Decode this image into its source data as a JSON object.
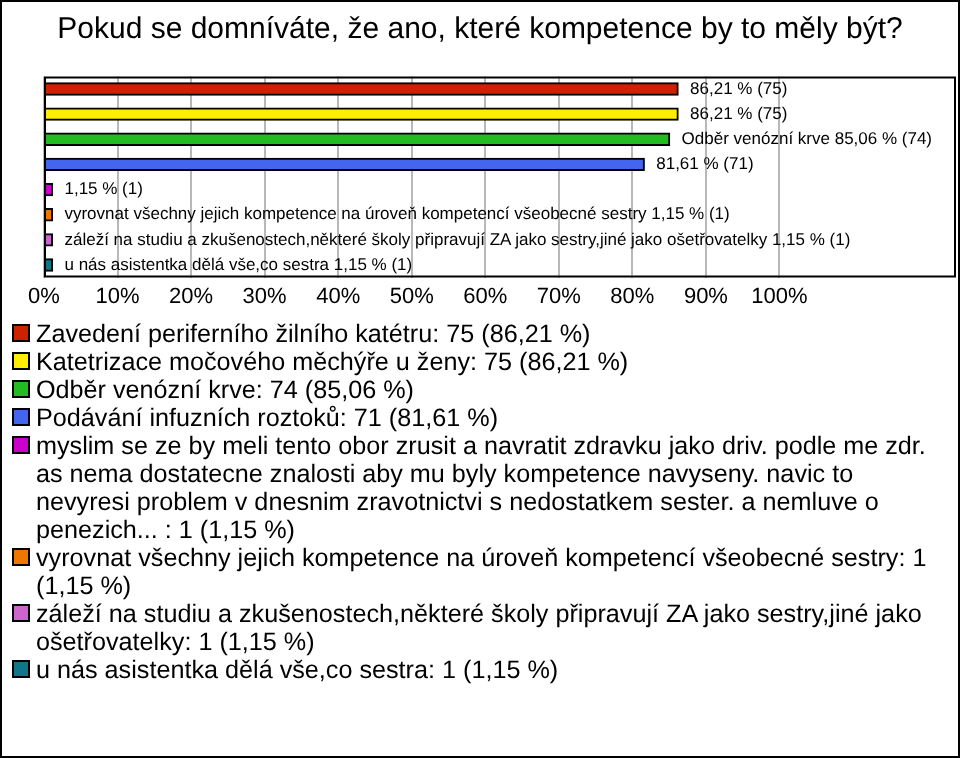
{
  "chart_data": {
    "type": "bar",
    "orientation": "horizontal",
    "title": "Pokud se domníváte, že ano, které kompetence by to měly být?",
    "categories": [
      null,
      null,
      null,
      null,
      null,
      null,
      null,
      null
    ],
    "series": [
      {
        "name": "Zavedení periferního žilního katétru: 75 (86,21 %)",
        "color": "#cc2200",
        "values": [
          86.21,
          null,
          null,
          null,
          null,
          null,
          null,
          null
        ],
        "value_labels": [
          "86,21 % (75)",
          null,
          null,
          null,
          null,
          null,
          null,
          null
        ]
      },
      {
        "name": "Katetrizace močového měchýře u ženy: 75 (86,21 %)",
        "color": "#ffee00",
        "values": [
          null,
          86.21,
          null,
          null,
          null,
          null,
          null,
          null
        ],
        "value_labels": [
          null,
          "86,21 % (75)",
          null,
          null,
          null,
          null,
          null,
          null
        ]
      },
      {
        "name": "Odběr venózní krve: 74 (85,06 %)",
        "color": "#22bb22",
        "values": [
          null,
          null,
          85.06,
          null,
          null,
          null,
          null,
          null
        ],
        "value_labels": [
          null,
          null,
          "Odběr venózní krve 85,06 % (74)",
          null,
          null,
          null,
          null,
          null
        ]
      },
      {
        "name": "Podávání infuzních roztoků: 71 (81,61 %)",
        "color": "#4466ee",
        "values": [
          null,
          null,
          null,
          81.61,
          null,
          null,
          null,
          null
        ],
        "value_labels": [
          null,
          null,
          null,
          "81,61 % (71)",
          null,
          null,
          null,
          null
        ]
      },
      {
        "name": "myslim se ze by meli tento obor zrusit a navratit zdravku jako driv. podle me zdr. as nema dostatecne znalosti aby mu byly kompetence navyseny. navic to nevyresi problem v dnesnim zravotnictvi s nedostatkem sester. a nemluve o penezich... : 1 (1,15 %)",
        "color": "#cc00cc",
        "values": [
          null,
          null,
          null,
          null,
          1.15,
          null,
          null,
          null
        ],
        "value_labels": [
          null,
          null,
          null,
          null,
          "1,15 % (1)",
          null,
          null,
          null
        ]
      },
      {
        "name": "vyrovnat všechny jejich kompetence na úroveň kompetencí všeobecné sestry: 1 (1,15 %)",
        "color": "#ee7700",
        "values": [
          null,
          null,
          null,
          null,
          null,
          1.15,
          null,
          null
        ],
        "value_labels": [
          null,
          null,
          null,
          null,
          null,
          "vyrovnat všechny jejich kompetence na úroveň kompetencí všeobecné sestry 1,15 % (1)",
          null,
          null
        ]
      },
      {
        "name": "záleží na studiu a zkušenostech,některé školy připravují ZA jako sestry,jiné jako ošetřovatelky: 1 (1,15 %)",
        "color": "#cc66cc",
        "values": [
          null,
          null,
          null,
          null,
          null,
          null,
          1.15,
          null
        ],
        "value_labels": [
          null,
          null,
          null,
          null,
          null,
          null,
          "záleží na studiu a zkušenostech,některé školy připravují ZA jako sestry,jiné jako ošetřovatelky 1,15 % (1)",
          null
        ]
      },
      {
        "name": "u nás asistentka dělá vše,co sestra: 1 (1,15 %)",
        "color": "#117788",
        "values": [
          null,
          null,
          null,
          null,
          null,
          null,
          null,
          1.15
        ],
        "value_labels": [
          null,
          null,
          null,
          null,
          null,
          null,
          null,
          "u nás asistentka dělá vše,co sestra 1,15 % (1)"
        ]
      }
    ],
    "xlim": [
      0,
      124
    ],
    "xticks": [
      {
        "value": 0,
        "label": "0%"
      },
      {
        "value": 10,
        "label": "10%"
      },
      {
        "value": 20,
        "label": "20%"
      },
      {
        "value": 30,
        "label": "30%"
      },
      {
        "value": 40,
        "label": "40%"
      },
      {
        "value": 50,
        "label": "50%"
      },
      {
        "value": 60,
        "label": "60%"
      },
      {
        "value": 70,
        "label": "70%"
      },
      {
        "value": 80,
        "label": "80%"
      },
      {
        "value": 90,
        "label": "90%"
      },
      {
        "value": 100,
        "label": "100%"
      }
    ],
    "grid": "x",
    "legend": "bottom"
  }
}
